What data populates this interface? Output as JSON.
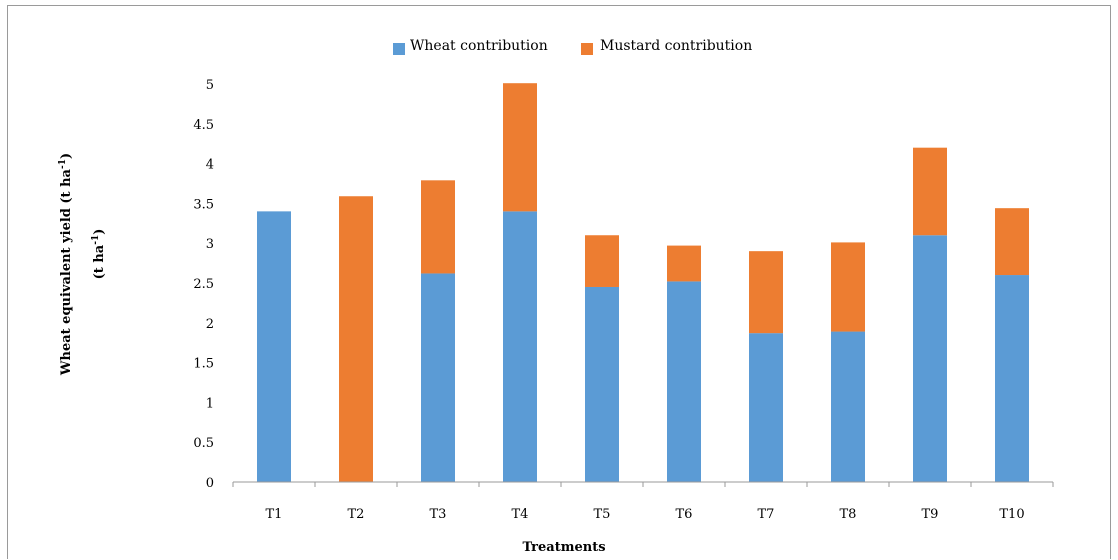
{
  "colors": {
    "wheat": "#5b9bd5",
    "mustard": "#ed7d31",
    "axis": "#9a9a9a"
  },
  "chart_data": {
    "type": "bar",
    "stacked": true,
    "categories": [
      "T1",
      "T2",
      "T3",
      "T4",
      "T5",
      "T6",
      "T7",
      "T8",
      "T9",
      "T10"
    ],
    "series": [
      {
        "name": "Wheat contribution",
        "values": [
          3.4,
          0,
          2.62,
          3.4,
          2.45,
          2.52,
          1.87,
          1.89,
          3.1,
          2.6
        ]
      },
      {
        "name": "Mustard contribution",
        "values": [
          0,
          3.59,
          1.17,
          1.61,
          0.65,
          0.45,
          1.03,
          1.12,
          1.1,
          0.84
        ]
      }
    ],
    "ylim": [
      0,
      5
    ],
    "yticks": [
      "0",
      "0.5",
      "1",
      "1.5",
      "2",
      "2.5",
      "3",
      "3.5",
      "4",
      "4.5",
      "5"
    ],
    "xlabel": "Treatments",
    "ylabel": "Wheat equivalent yield (t ha",
    "ylabel_sup": "-1",
    "ylabel_close": ")",
    "ylabel_line2": "(t ha",
    "ylabel_line2_sup": "-1",
    "ylabel_line2_close": ")",
    "legend_position": "top-center",
    "grid": false
  }
}
